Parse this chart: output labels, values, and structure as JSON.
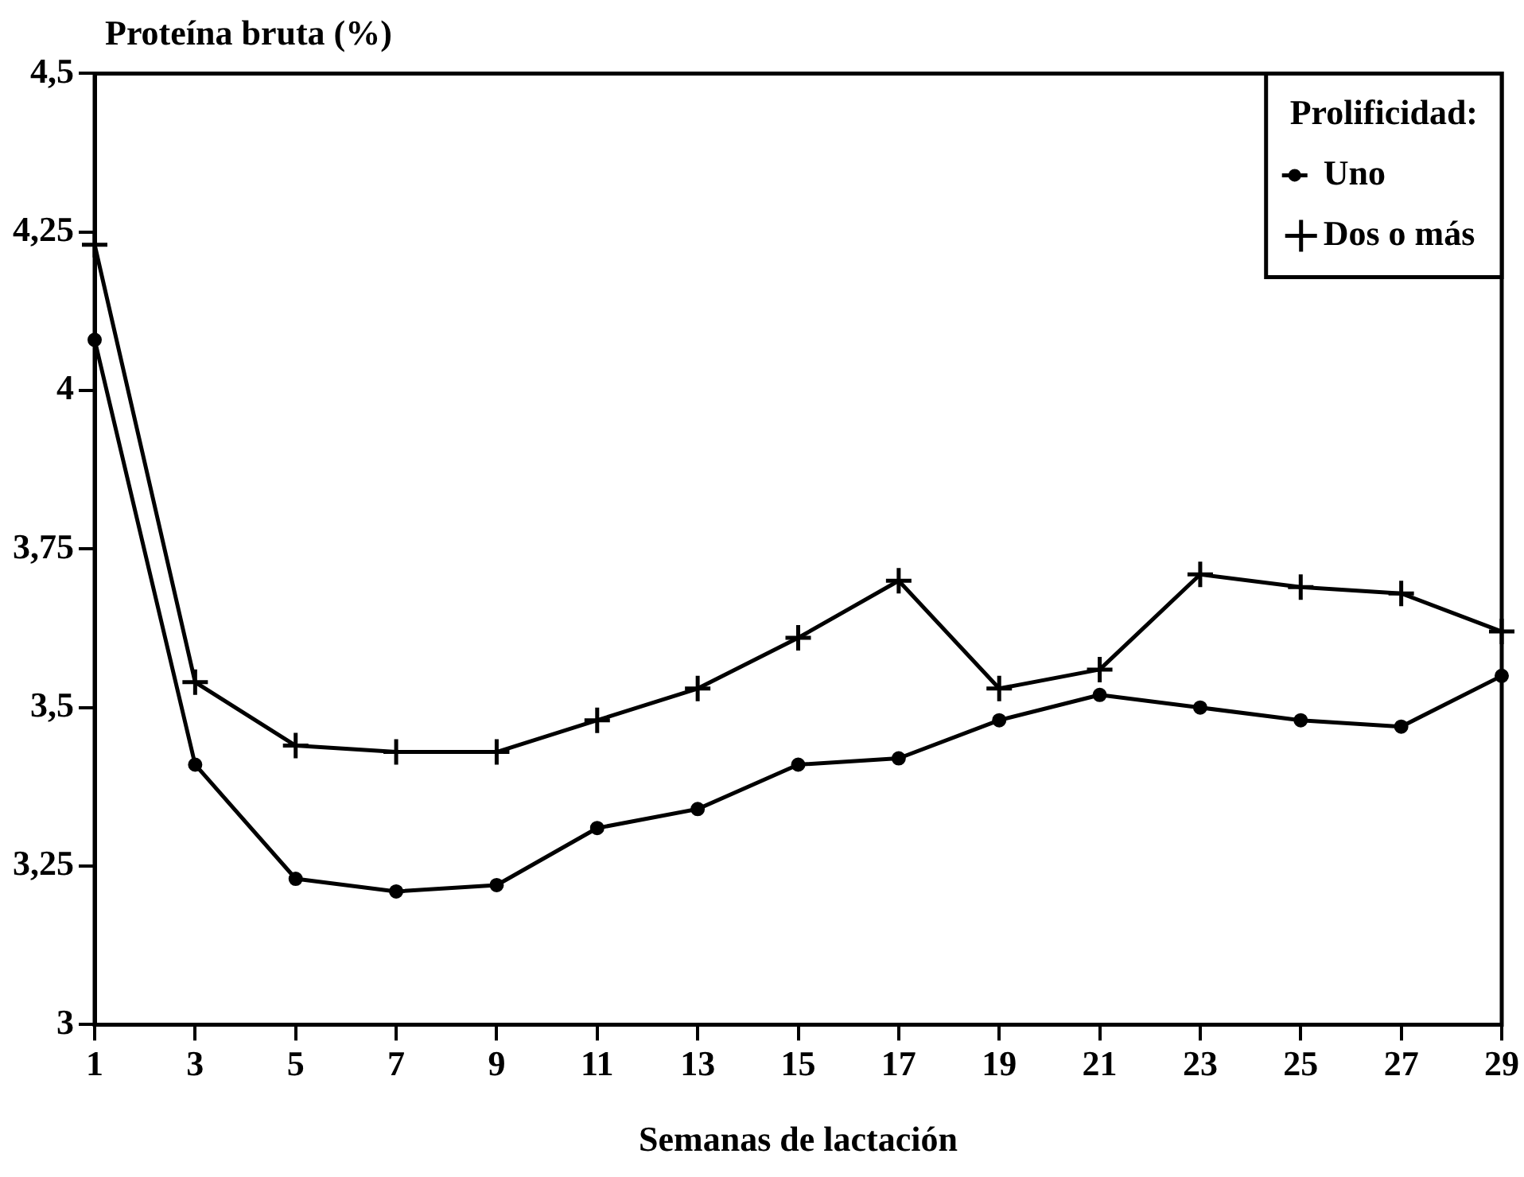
{
  "chart_data": {
    "type": "line",
    "xlabel": "Semanas de lactación",
    "ylabel": "Proteína bruta (%)",
    "legend_title": "Prolificidad:",
    "legend": "top right",
    "grid": false,
    "x": [
      1,
      3,
      5,
      7,
      9,
      11,
      13,
      15,
      17,
      19,
      21,
      23,
      25,
      27,
      29
    ],
    "xlim": [
      1,
      29
    ],
    "xticks": [
      1,
      3,
      5,
      7,
      9,
      11,
      13,
      15,
      17,
      19,
      21,
      23,
      25,
      27,
      29
    ],
    "ylim": [
      3,
      4.5
    ],
    "yticks": [
      3,
      {
        "value": 3.25,
        "label": "3,25"
      },
      {
        "value": 3.5,
        "label": "3,5"
      },
      {
        "value": 3.75,
        "label": "3,75"
      },
      4,
      {
        "value": 4.25,
        "label": "4,25"
      },
      {
        "value": 4.5,
        "label": "4,5"
      }
    ],
    "series": [
      {
        "name": "Uno",
        "color": "#000000",
        "marker": "circle",
        "values": [
          4.08,
          3.41,
          3.23,
          3.21,
          3.22,
          3.31,
          3.34,
          3.41,
          3.42,
          3.48,
          3.52,
          3.5,
          3.48,
          3.47,
          3.55
        ]
      },
      {
        "name": "Dos o más",
        "color": "#000000",
        "marker": "cross",
        "values": [
          4.23,
          3.54,
          3.44,
          3.43,
          3.43,
          3.48,
          3.53,
          3.61,
          3.7,
          3.53,
          3.56,
          3.71,
          3.69,
          3.68,
          3.62
        ]
      }
    ]
  }
}
